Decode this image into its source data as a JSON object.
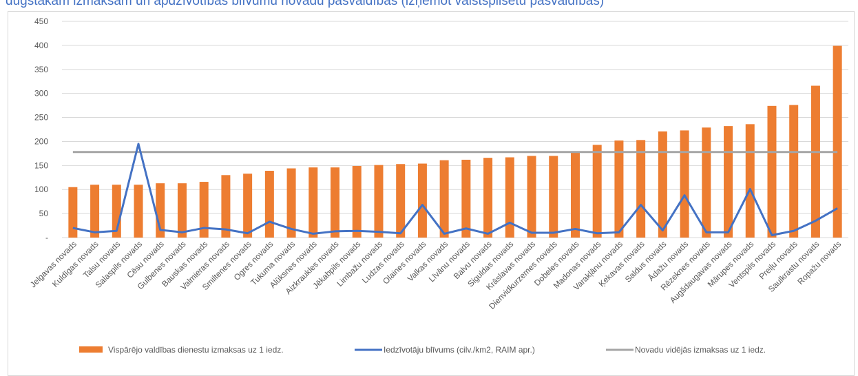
{
  "title_fragment": "dugstākām izmaksām un apdzīvotības blīvumu novadu pašvaldībās (izņemot valstspilsētu pašvaldības)",
  "colors": {
    "bar": "#ed7d31",
    "density_line": "#4472c4",
    "average_line": "#a5a5a5",
    "grid": "#d9d9d9",
    "text": "#595959"
  },
  "chart_data": {
    "type": "bar",
    "categories": [
      "Jelgavas novads",
      "Kuldīgas novads",
      "Talsu novads",
      "Salaspils novads",
      "Cēsu novads",
      "Gulbenes novads",
      "Bauskas novads",
      "Valmieras novads",
      "Smiltenes novads",
      "Ogres novads",
      "Tukuma novads",
      "Alūksnes novads",
      "Aizkraukles novads",
      "Jēkabpils novads",
      "Limbažu novads",
      "Ludzas novads",
      "Olaines novads",
      "Valkas novads",
      "Līvānu novads",
      "Balvu novads",
      "Siguldas novads",
      "Krāslavas novads",
      "Dienvidkurzemes novads",
      "Dobeles novads",
      "Madonas novads",
      "Varakļānu novads",
      "Ķekavas novads",
      "Saldus novads",
      "Ādažu novads",
      "Rēzeknes novads",
      "Augšdaugavas novads",
      "Mārupes novads",
      "Ventspils novads",
      "Preiļu novads",
      "Saulkrastu novads",
      "Ropažu novads"
    ],
    "series": [
      {
        "name": "Vispārējo valdības dienestu izmaksas uz 1 iedz.",
        "kind": "bar",
        "values": [
          105,
          110,
          110,
          110,
          113,
          113,
          116,
          130,
          133,
          139,
          144,
          146,
          146,
          149,
          151,
          153,
          154,
          161,
          162,
          166,
          167,
          170,
          170,
          177,
          193,
          202,
          203,
          221,
          223,
          229,
          232,
          236,
          274,
          276,
          316,
          399
        ]
      },
      {
        "name": "Iedzīvotāju blīvums (cilv./km2, RAIM apr.)",
        "kind": "line",
        "values": [
          20,
          11,
          14,
          195,
          16,
          11,
          20,
          17,
          9,
          33,
          18,
          8,
          13,
          14,
          12,
          9,
          68,
          8,
          19,
          8,
          31,
          10,
          10,
          18,
          9,
          11,
          68,
          15,
          88,
          11,
          11,
          101,
          5,
          14,
          35,
          61
        ]
      },
      {
        "name": "Novadu vidējās izmaksas uz 1 iedz.",
        "kind": "line",
        "values": [
          178,
          178,
          178,
          178,
          178,
          178,
          178,
          178,
          178,
          178,
          178,
          178,
          178,
          178,
          178,
          178,
          178,
          178,
          178,
          178,
          178,
          178,
          178,
          178,
          178,
          178,
          178,
          178,
          178,
          178,
          178,
          178,
          178,
          178,
          178,
          178
        ]
      }
    ],
    "ylim": [
      0,
      450
    ],
    "yticks": [
      "-",
      "50",
      "100",
      "150",
      "200",
      "250",
      "300",
      "350",
      "400",
      "450"
    ],
    "grid": true,
    "legend_position": "bottom"
  }
}
